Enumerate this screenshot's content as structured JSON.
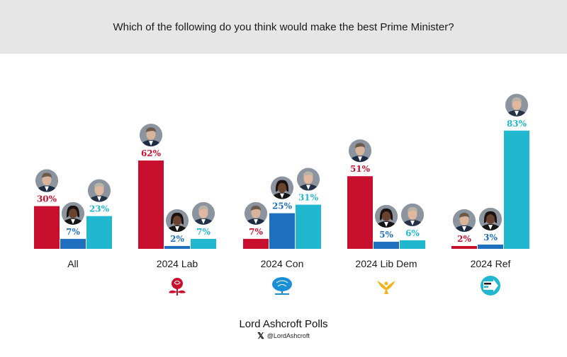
{
  "header": {
    "title": "Which of the following do you think would make the best Prime Minister?"
  },
  "footer": {
    "brand": "Lord Ashcroft Polls",
    "handle": "@LordAshcroft",
    "handle_icon": "x-logo-icon"
  },
  "colors": {
    "red": "#c8102e",
    "blue": "#1f6fbf",
    "cyan": "#21b8cf"
  },
  "chart_data": {
    "type": "bar",
    "categories": [
      "All",
      "2024 Lab",
      "2024 Con",
      "2024 Lib Dem",
      "2024 Ref"
    ],
    "category_icons": [
      null,
      "labour-rose-icon",
      "conservative-tree-icon",
      "libdem-bird-icon",
      "reform-uk-icon"
    ],
    "series": [
      {
        "values": [
          30,
          62,
          7,
          51,
          2
        ],
        "color": "#c8102e",
        "avatar": "starmer-portrait-icon"
      },
      {
        "values": [
          7,
          2,
          25,
          5,
          3
        ],
        "color": "#1f6fbf",
        "avatar": "badenoch-portrait-icon"
      },
      {
        "values": [
          23,
          7,
          31,
          6,
          83
        ],
        "color": "#21b8cf",
        "avatar": "farage-portrait-icon"
      }
    ],
    "value_suffix": "%",
    "ylim": [
      0,
      100
    ],
    "grid": false,
    "legend": "none"
  }
}
